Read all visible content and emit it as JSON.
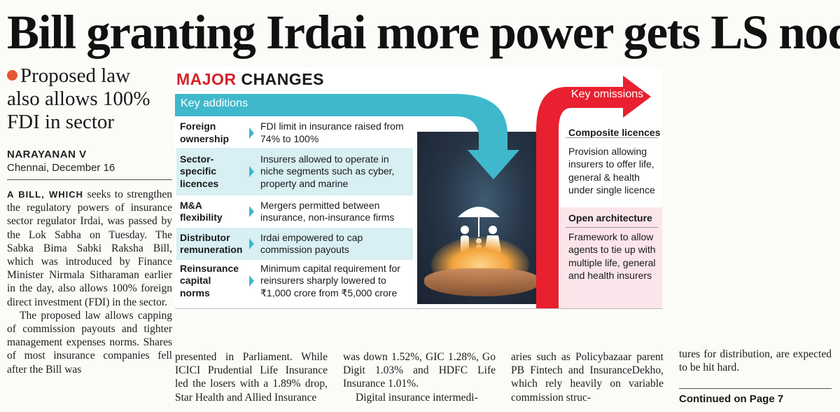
{
  "headline": "Bill granting Irdai more power gets LS nod",
  "deck": "Proposed law also allows 100% FDI in sector",
  "byline": {
    "name": "NARAYANAN V",
    "dateline": "Chennai, December 16"
  },
  "infographic": {
    "title_major": "MAJOR",
    "title_changes": "CHANGES",
    "additions_label": "Key additions",
    "omissions_label": "Key omissions",
    "additions": [
      {
        "label": "Foreign ownership",
        "text": "FDI limit in insurance raised from 74% to 100%"
      },
      {
        "label": "Sector-specific licences",
        "text": "Insurers allowed to operate in niche segments such as cyber, property and marine"
      },
      {
        "label": "M&A flexibility",
        "text": "Mergers permitted between insurance, non-insurance firms"
      },
      {
        "label": "Distributor remuneration",
        "text": "Irdai empowered to cap commission payouts"
      },
      {
        "label": "Reinsurance capital norms",
        "text": "Minimum capital requirement for reinsurers sharply lowered to ₹1,000 crore from ₹5,000 crore"
      }
    ],
    "omissions": [
      {
        "heading": "Composite licences",
        "text": "Provision allowing insurers to offer life, general & health under single licence"
      },
      {
        "heading": "Open architecture",
        "text": "Framework to allow agents to tie up with multiple life, general and health insurers"
      }
    ],
    "colors": {
      "red": "#d2232a",
      "teal": "#3fb8cc",
      "bullet": "#e4572e"
    }
  },
  "body": {
    "lead_caps": "A BILL, WHICH",
    "col1_p1": "seeks to strengthen the regulatory powers of insurance sector regulator Irdai, was passed by the Lok Sabha on Tuesday. The Sabka Bima Sabki Raksha Bill, which was introduced by Finance Minister Nirmala Sitharaman earlier in the day, also allows 100% foreign direct investment (FDI) in the sector.",
    "col1_p2": "The proposed law allows capping of commission payouts and tighter management expenses norms. Shares of most insurance companies fell after the Bill was",
    "col2": "presented in Parliament. While ICICI Prudential Life Insurance led the losers with a 1.89% drop, Star Health and Allied Insurance",
    "col3_p1": "was down 1.52%, GIC 1.28%, Go Digit 1.03% and HDFC Life Insurance 1.01%.",
    "col3_p2": "Digital insurance intermedi-",
    "col4": "aries such as Policybazaar parent PB Fintech and InsuranceDekho, which rely heavily on variable commission struc-",
    "col5": "tures for distribution, are expected to be hit hard.",
    "continued": "Continued on Page 7"
  }
}
